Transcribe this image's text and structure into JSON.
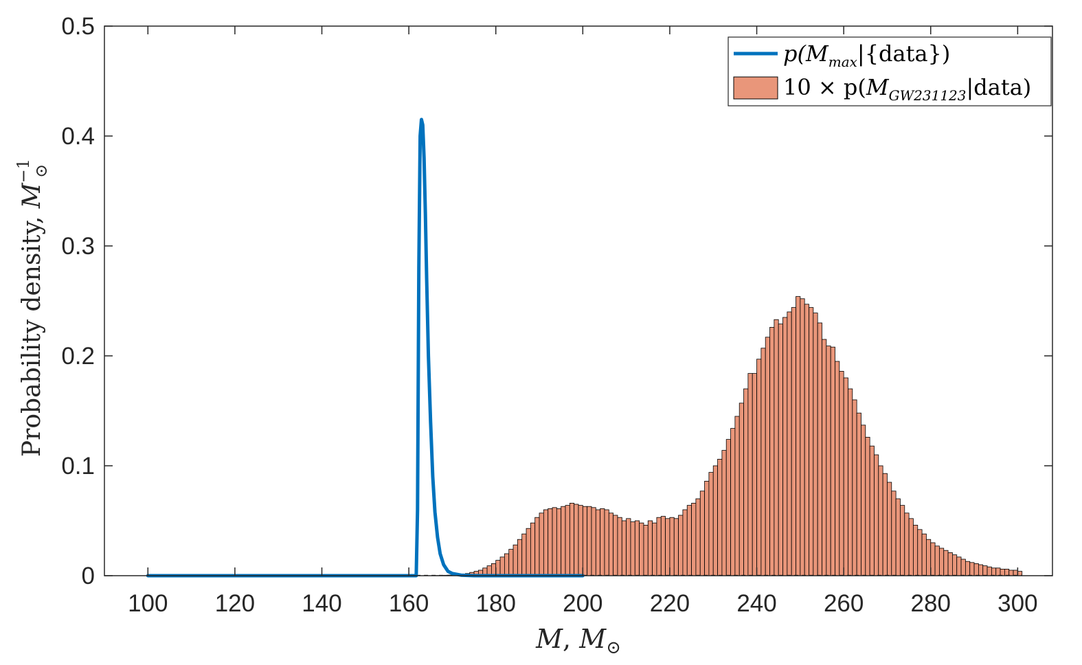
{
  "chart_data": {
    "type": "bar",
    "xlabel": {
      "main": "M",
      "sep": ", ",
      "unit": "M",
      "unit_sub": "⊙"
    },
    "ylabel": {
      "main": "Probability density, ",
      "unit": "M",
      "unit_sub": "⊙",
      "unit_sup": "−1"
    },
    "xlim": [
      90,
      308
    ],
    "ylim": [
      0,
      0.5
    ],
    "x_ticks": [
      "100",
      "120",
      "140",
      "160",
      "180",
      "200",
      "220",
      "240",
      "260",
      "280",
      "300"
    ],
    "y_ticks": [
      "0",
      "0.1",
      "0.2",
      "0.3",
      "0.4",
      "0.5"
    ],
    "grid": false,
    "legend_position": "top-right",
    "legend": [
      {
        "kind": "line",
        "color": "#0072BD",
        "prefix": "p(",
        "M": "M",
        "sub": "max",
        "suffix": "|{data})"
      },
      {
        "kind": "bar",
        "color": "#E9967A",
        "prefix": "10 × p(",
        "M": "M",
        "sub": "GW231123",
        "suffix": "|data)"
      }
    ],
    "series": [
      {
        "kind": "line",
        "color": "#0072BD",
        "x": [
          100,
          150,
          161.7,
          162.0,
          162.3,
          162.6,
          162.9,
          163.2,
          163.5,
          163.8,
          164.1,
          164.5,
          165.0,
          165.5,
          166.0,
          166.6,
          167.2,
          168.0,
          169.0,
          170.0,
          172.0,
          175.0,
          200
        ],
        "y": [
          0,
          0,
          0,
          0.06,
          0.28,
          0.4,
          0.415,
          0.41,
          0.38,
          0.33,
          0.27,
          0.2,
          0.14,
          0.09,
          0.058,
          0.035,
          0.02,
          0.01,
          0.004,
          0.002,
          0.0005,
          0,
          0
        ]
      },
      {
        "kind": "histogram",
        "color": "#E9967A",
        "edge_color": "#000000",
        "bin_start": 166,
        "bin_width": 1,
        "values": [
          0.0002,
          0.0003,
          0.0004,
          0.0005,
          0.0007,
          0.001,
          0.0015,
          0.002,
          0.003,
          0.004,
          0.005,
          0.007,
          0.009,
          0.011,
          0.014,
          0.017,
          0.02,
          0.024,
          0.028,
          0.033,
          0.038,
          0.043,
          0.048,
          0.053,
          0.057,
          0.06,
          0.061,
          0.062,
          0.061,
          0.063,
          0.064,
          0.066,
          0.065,
          0.064,
          0.063,
          0.063,
          0.062,
          0.06,
          0.061,
          0.06,
          0.057,
          0.055,
          0.053,
          0.05,
          0.052,
          0.049,
          0.05,
          0.048,
          0.046,
          0.05,
          0.048,
          0.053,
          0.054,
          0.052,
          0.053,
          0.052,
          0.055,
          0.06,
          0.064,
          0.066,
          0.07,
          0.077,
          0.086,
          0.094,
          0.1,
          0.106,
          0.114,
          0.124,
          0.134,
          0.145,
          0.157,
          0.17,
          0.184,
          0.184,
          0.197,
          0.207,
          0.217,
          0.226,
          0.233,
          0.229,
          0.235,
          0.24,
          0.244,
          0.254,
          0.252,
          0.247,
          0.244,
          0.239,
          0.23,
          0.215,
          0.209,
          0.208,
          0.195,
          0.186,
          0.18,
          0.17,
          0.16,
          0.148,
          0.137,
          0.126,
          0.118,
          0.11,
          0.1,
          0.093,
          0.085,
          0.077,
          0.07,
          0.064,
          0.057,
          0.052,
          0.046,
          0.042,
          0.038,
          0.033,
          0.03,
          0.027,
          0.025,
          0.023,
          0.021,
          0.019,
          0.017,
          0.015,
          0.013,
          0.012,
          0.011,
          0.01,
          0.009,
          0.008,
          0.007,
          0.007,
          0.006,
          0.006,
          0.005,
          0.005,
          0.004
        ]
      }
    ]
  }
}
